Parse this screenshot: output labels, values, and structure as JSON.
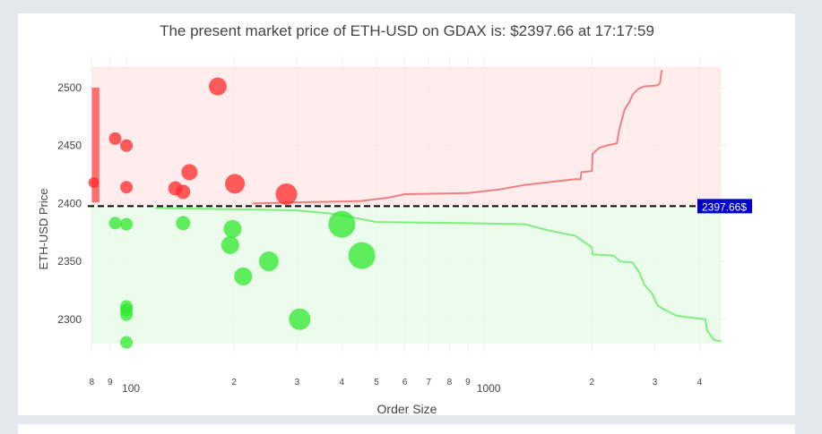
{
  "chart_data": {
    "type": "scatter",
    "title": "The present market price of ETH-USD on GDAX is: $2397.66 at 17:17:59",
    "xlabel": "Order Size",
    "ylabel": "ETH-USD Price",
    "x_scale": "log",
    "xlim": [
      78,
      4800
    ],
    "ylim": [
      2272,
      2527
    ],
    "x_ticks": [
      {
        "value": 80,
        "label": "8"
      },
      {
        "value": 90,
        "label": "9"
      },
      {
        "value": 100,
        "label": "100"
      },
      {
        "value": 200,
        "label": "2"
      },
      {
        "value": 300,
        "label": "3"
      },
      {
        "value": 400,
        "label": "4"
      },
      {
        "value": 500,
        "label": "5"
      },
      {
        "value": 600,
        "label": "6"
      },
      {
        "value": 700,
        "label": "7"
      },
      {
        "value": 800,
        "label": "8"
      },
      {
        "value": 900,
        "label": "9"
      },
      {
        "value": 1000,
        "label": "1000"
      },
      {
        "value": 2000,
        "label": "2"
      },
      {
        "value": 3000,
        "label": "3"
      },
      {
        "value": 4000,
        "label": "4"
      }
    ],
    "y_ticks": [
      {
        "value": 2300,
        "label": "2300"
      },
      {
        "value": 2350,
        "label": "2350"
      },
      {
        "value": 2400,
        "label": "2400"
      },
      {
        "value": 2450,
        "label": "2450"
      },
      {
        "value": 2500,
        "label": "2500"
      }
    ],
    "grid": true,
    "current_price": 2397.66,
    "current_price_label": "2397.66$",
    "ask_band": {
      "x": [
        80,
        4600
      ],
      "y": [
        2398,
        2518
      ],
      "color": "#ffe6e6"
    },
    "bid_band": {
      "x": [
        80,
        4600
      ],
      "y": [
        2279,
        2397
      ],
      "color": "#e6fbe6"
    },
    "ask_bar": {
      "x": [
        80,
        84
      ],
      "y": [
        2401,
        2500
      ],
      "color": "#ff7070"
    },
    "ask_color": "#ff2a2a",
    "bid_color": "#2ee82e",
    "asks": [
      {
        "x": 81,
        "y": 2418,
        "size": 6
      },
      {
        "x": 93,
        "y": 2456,
        "size": 7
      },
      {
        "x": 100,
        "y": 2450,
        "size": 7
      },
      {
        "x": 100,
        "y": 2414,
        "size": 7
      },
      {
        "x": 137,
        "y": 2413,
        "size": 8
      },
      {
        "x": 144,
        "y": 2410,
        "size": 8
      },
      {
        "x": 150,
        "y": 2427,
        "size": 9
      },
      {
        "x": 180,
        "y": 2501,
        "size": 10
      },
      {
        "x": 201,
        "y": 2417,
        "size": 11
      },
      {
        "x": 280,
        "y": 2408,
        "size": 12
      }
    ],
    "bids": [
      {
        "x": 93,
        "y": 2383,
        "size": 7
      },
      {
        "x": 100,
        "y": 2382,
        "size": 7
      },
      {
        "x": 100,
        "y": 2311,
        "size": 7
      },
      {
        "x": 100,
        "y": 2308,
        "size": 7
      },
      {
        "x": 100,
        "y": 2304,
        "size": 7
      },
      {
        "x": 100,
        "y": 2280,
        "size": 7
      },
      {
        "x": 144,
        "y": 2383,
        "size": 8
      },
      {
        "x": 195,
        "y": 2364,
        "size": 10
      },
      {
        "x": 198,
        "y": 2378,
        "size": 10
      },
      {
        "x": 212,
        "y": 2337,
        "size": 10
      },
      {
        "x": 250,
        "y": 2350,
        "size": 11
      },
      {
        "x": 305,
        "y": 2300,
        "size": 12
      },
      {
        "x": 400,
        "y": 2382,
        "size": 15
      },
      {
        "x": 455,
        "y": 2355,
        "size": 15
      }
    ],
    "ask_depth_line": [
      [
        225,
        2400
      ],
      [
        300,
        2401
      ],
      [
        450,
        2402
      ],
      [
        540,
        2405
      ],
      [
        600,
        2408
      ],
      [
        900,
        2409
      ],
      [
        1100,
        2412
      ],
      [
        1300,
        2416
      ],
      [
        1800,
        2421
      ],
      [
        1860,
        2421
      ],
      [
        1870,
        2427
      ],
      [
        2000,
        2428
      ],
      [
        2010,
        2443
      ],
      [
        2100,
        2448
      ],
      [
        2200,
        2450
      ],
      [
        2350,
        2452
      ],
      [
        2380,
        2462
      ],
      [
        2420,
        2471
      ],
      [
        2470,
        2481
      ],
      [
        2550,
        2488
      ],
      [
        2600,
        2494
      ],
      [
        2700,
        2499
      ],
      [
        2800,
        2501
      ],
      [
        3050,
        2502
      ],
      [
        3100,
        2504
      ],
      [
        3130,
        2514
      ],
      [
        3150,
        2515
      ]
    ],
    "bid_depth_line": [
      [
        120,
        2396
      ],
      [
        200,
        2395
      ],
      [
        300,
        2394
      ],
      [
        380,
        2391
      ],
      [
        500,
        2384
      ],
      [
        900,
        2383
      ],
      [
        1300,
        2382
      ],
      [
        1500,
        2377
      ],
      [
        1800,
        2372
      ],
      [
        2000,
        2362
      ],
      [
        2010,
        2356
      ],
      [
        2300,
        2355
      ],
      [
        2400,
        2350
      ],
      [
        2600,
        2349
      ],
      [
        2720,
        2340
      ],
      [
        2800,
        2330
      ],
      [
        2950,
        2322
      ],
      [
        3050,
        2312
      ],
      [
        3200,
        2308
      ],
      [
        3450,
        2303
      ],
      [
        3900,
        2301
      ],
      [
        4150,
        2300
      ],
      [
        4200,
        2290
      ],
      [
        4400,
        2282
      ],
      [
        4600,
        2281
      ]
    ],
    "ask_line_color": "#f08080",
    "bid_line_color": "#80ee80"
  }
}
